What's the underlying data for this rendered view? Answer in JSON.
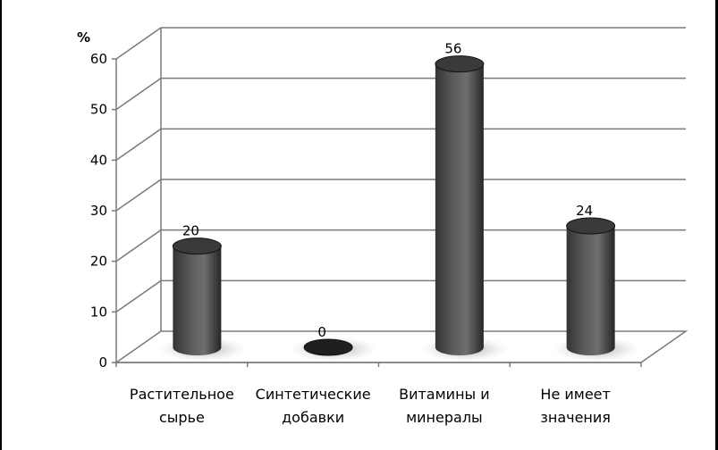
{
  "chart_data": {
    "type": "bar",
    "style": "3d-cylinder",
    "title": "",
    "ylabel": "%",
    "xlabel": "",
    "ylim": [
      0,
      60
    ],
    "yticks": [
      "0",
      "10",
      "20",
      "30",
      "40",
      "50",
      "60"
    ],
    "categories": [
      [
        "Растительное",
        "сырье"
      ],
      [
        "Синтетические",
        "добавки"
      ],
      [
        "Витамины и",
        "минералы"
      ],
      [
        "Не имеет",
        "значения"
      ]
    ],
    "values": [
      20,
      0,
      56,
      24
    ],
    "data_labels": [
      "20",
      "0",
      "56",
      "24"
    ],
    "grid": true,
    "legend": "none",
    "colors": {
      "bar_dark": "#2b2b2b",
      "bar_light": "#8a8a8a",
      "grid": "#7a7a7a"
    }
  }
}
